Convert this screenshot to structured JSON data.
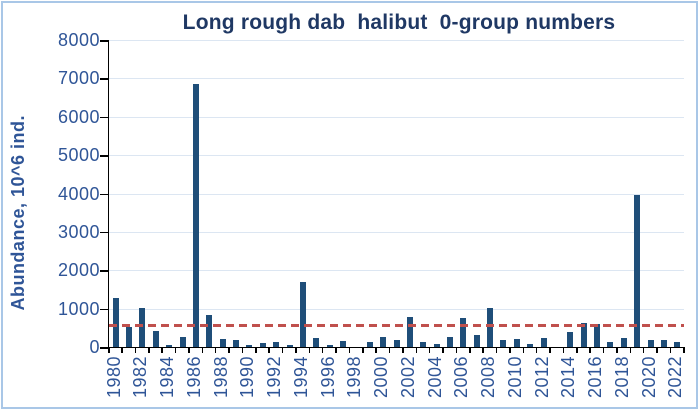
{
  "title": "Long rough dab  halibut  0-group numbers",
  "chart_data": {
    "type": "bar",
    "title": "Long rough dab  halibut  0-group numbers",
    "xlabel": "",
    "ylabel": "Abundance, 10^6 ind.",
    "ylim": [
      0,
      8000
    ],
    "ytick_interval": 1000,
    "yticks": [
      0,
      1000,
      2000,
      3000,
      4000,
      5000,
      6000,
      7000,
      8000
    ],
    "x_label_interval": 2,
    "grid": true,
    "legend": "none",
    "categories": [
      1980,
      1981,
      1982,
      1983,
      1984,
      1985,
      1986,
      1987,
      1988,
      1989,
      1990,
      1991,
      1992,
      1993,
      1994,
      1995,
      1996,
      1997,
      1998,
      1999,
      2000,
      2001,
      2002,
      2003,
      2004,
      2005,
      2006,
      2007,
      2008,
      2009,
      2010,
      2011,
      2012,
      2013,
      2014,
      2015,
      2016,
      2017,
      2018,
      2019,
      2020,
      2021,
      2022
    ],
    "values": [
      1270,
      520,
      1010,
      420,
      60,
      250,
      6850,
      830,
      210,
      170,
      60,
      100,
      135,
      40,
      1700,
      235,
      65,
      150,
      0,
      120,
      260,
      195,
      770,
      120,
      90,
      255,
      745,
      315,
      1020,
      170,
      200,
      80,
      230,
      0,
      390,
      620,
      590,
      140,
      230,
      3960,
      195,
      170,
      120
    ],
    "mean_line": {
      "value": 580,
      "style": "dashed",
      "color": "#C0504D"
    }
  },
  "colors": {
    "bar": "#1F4E79",
    "mean_line": "#C0504D",
    "title_text": "#1F3864",
    "axis_text": "#2F5597",
    "gridline": "#DCE6F2",
    "axis_line": "#000000",
    "frame_border": "#A9C7E7",
    "background": "#FFFFFF"
  }
}
